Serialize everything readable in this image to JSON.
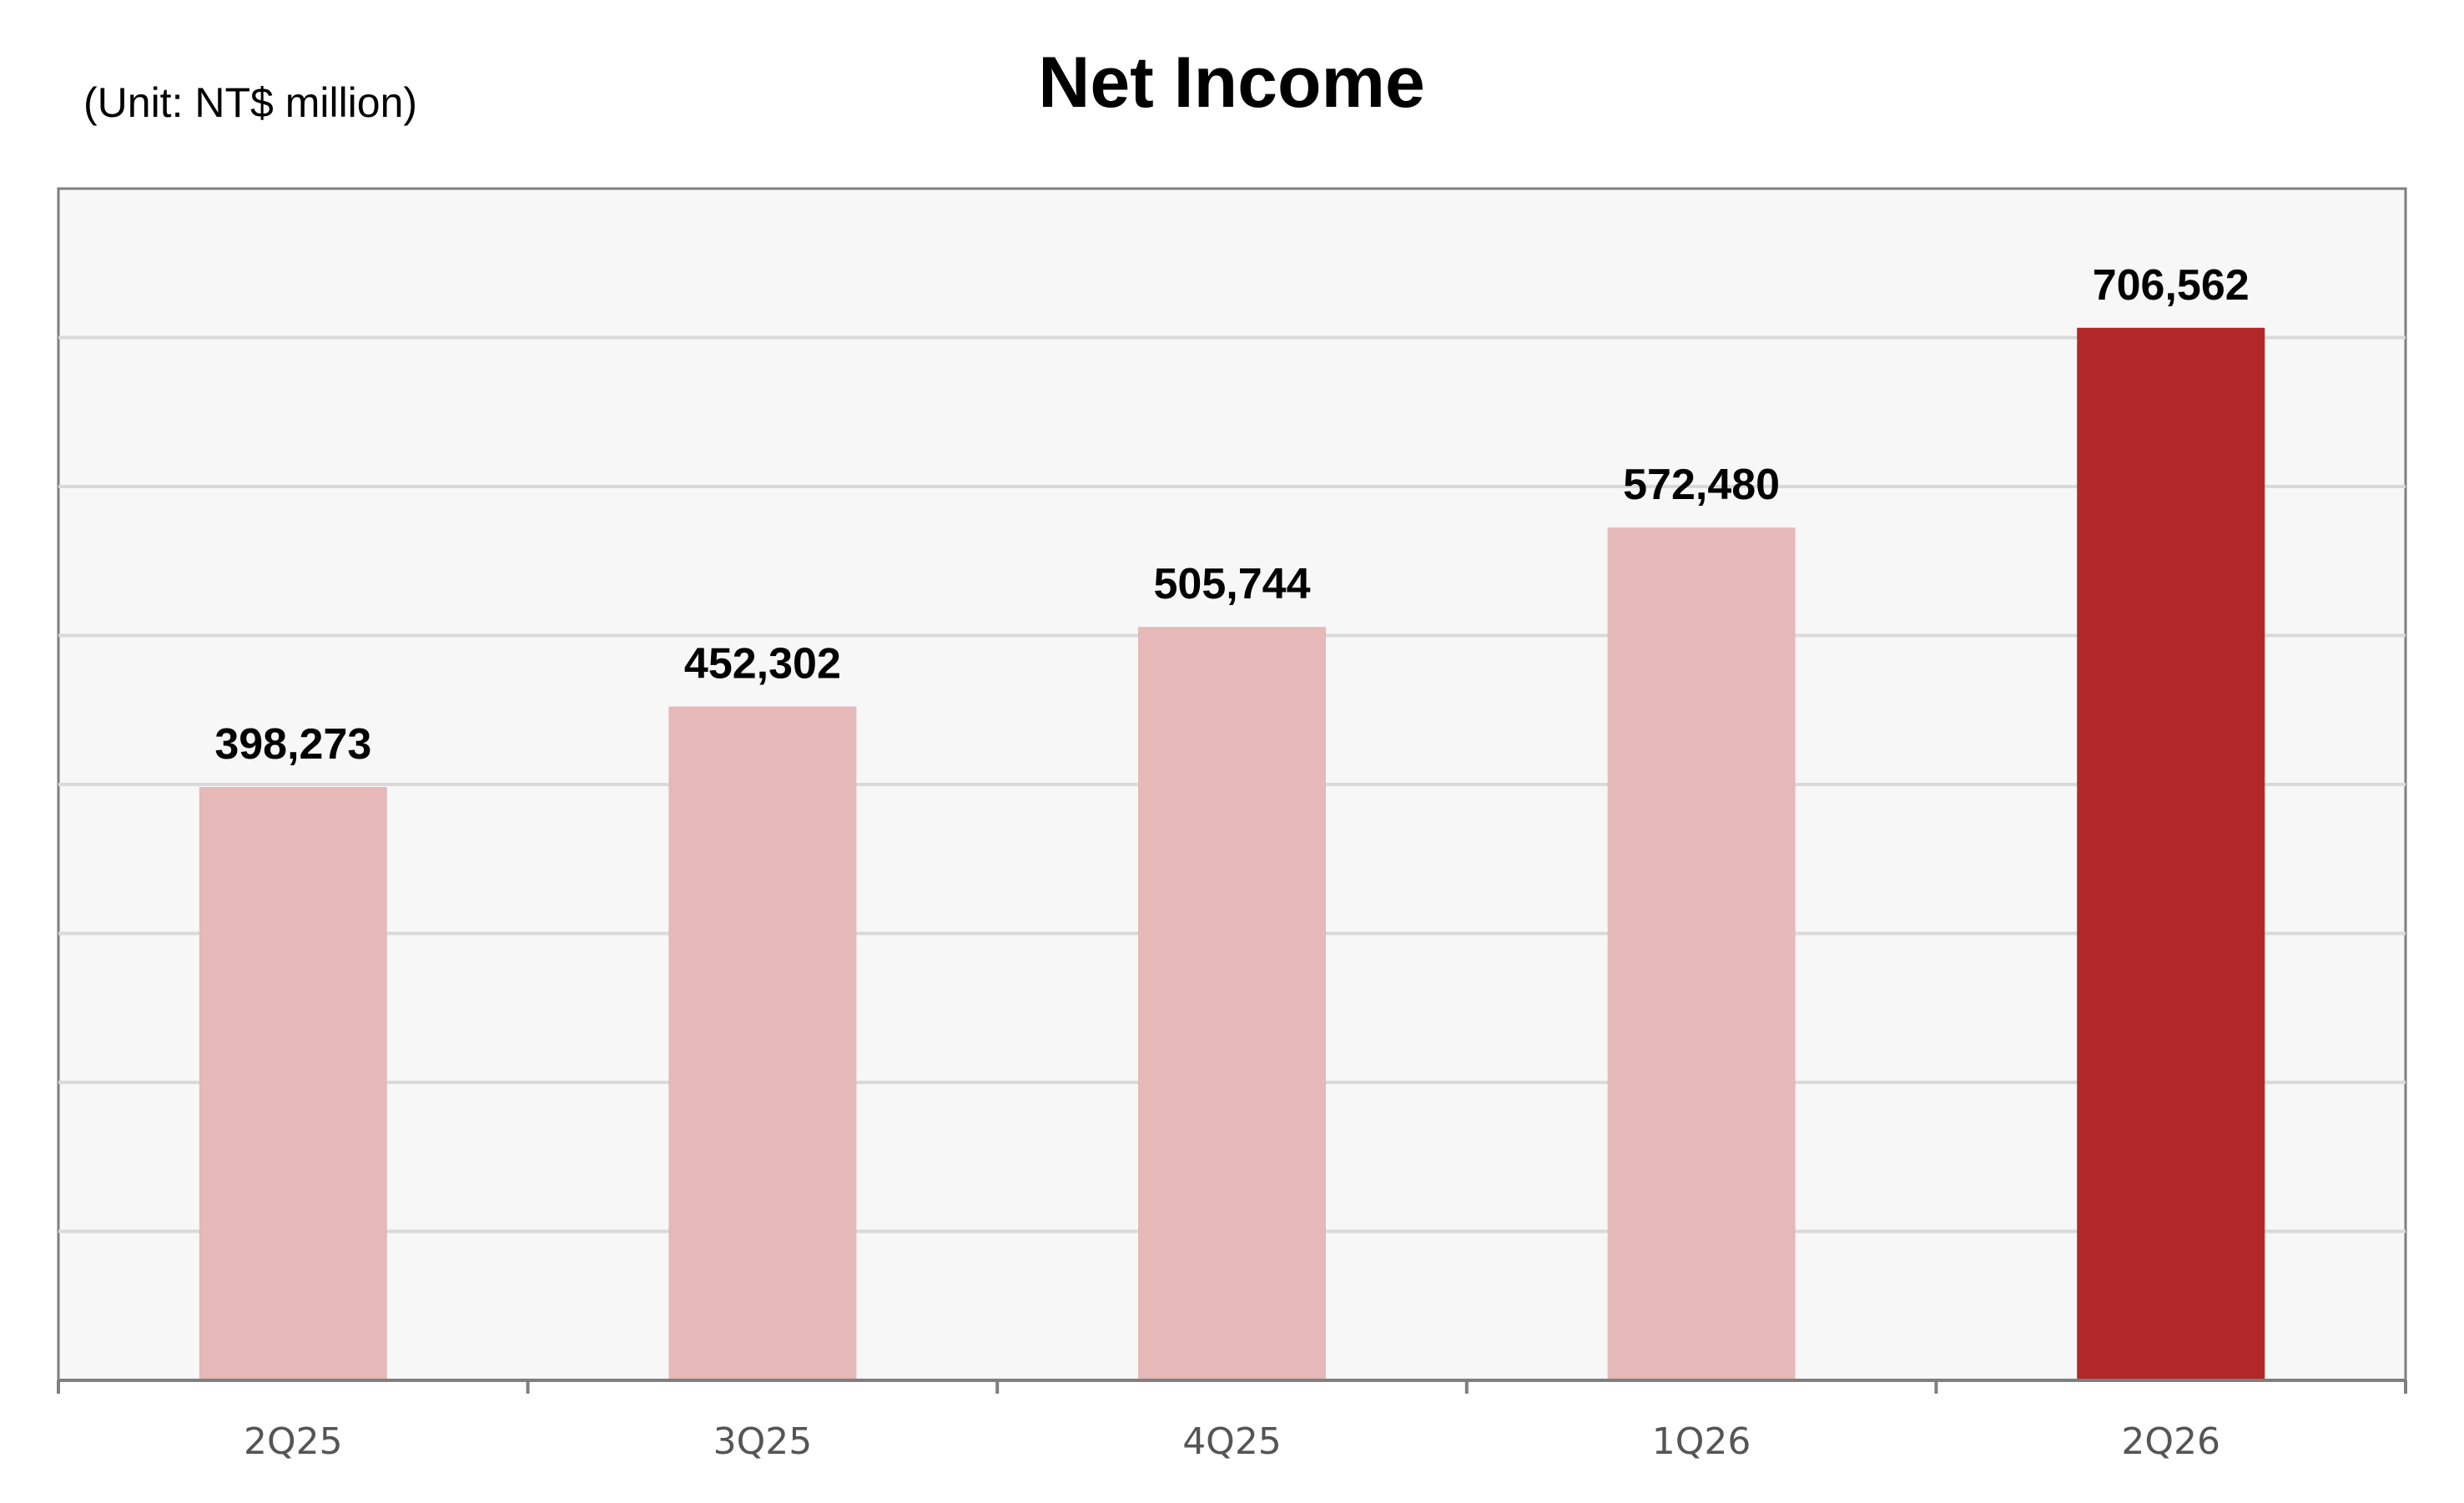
{
  "chart_data": {
    "type": "bar",
    "title": "Net Income",
    "unit_note": "(Unit: NT$ million)",
    "xlabel": "",
    "ylabel": "",
    "categories": [
      "2Q25",
      "3Q25",
      "4Q25",
      "1Q26",
      "2Q26"
    ],
    "values": [
      398273,
      452302,
      505744,
      572480,
      706562
    ],
    "value_labels": [
      "398,273",
      "452,302",
      "505,744",
      "572,480",
      "706,562"
    ],
    "ylim": [
      0,
      800000
    ],
    "y_gridline_step": 100000,
    "y_tick_labels_shown": false,
    "grid": true,
    "legend": "none",
    "colors": {
      "bar_default": "#E6B8B8",
      "bar_highlight": "#B22828",
      "plot_background": "#F7F7F7",
      "gridline": "#D9D9D9",
      "axis": "#7F7F7F"
    },
    "highlight_index": 4
  }
}
